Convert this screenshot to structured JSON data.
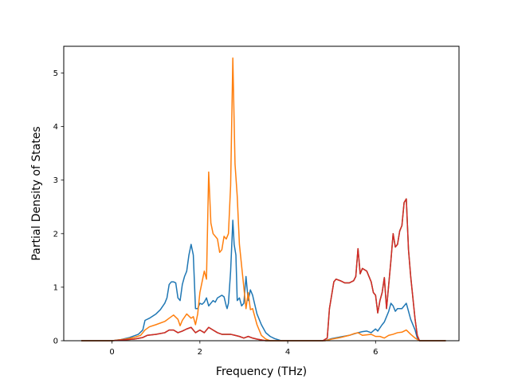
{
  "chart_data": {
    "type": "line",
    "xlabel": "Frequency (THz)",
    "ylabel": "Partial Density of States",
    "xlim": [
      -1.1,
      7.9
    ],
    "ylim": [
      0,
      5.5
    ],
    "xticks": [
      0,
      2,
      4,
      6
    ],
    "yticks": [
      0,
      1,
      2,
      3,
      4,
      5
    ],
    "grid": false,
    "legend": "none",
    "series": [
      {
        "color": "#1f77b4",
        "points": [
          [
            -0.7,
            0
          ],
          [
            0,
            0
          ],
          [
            0.2,
            0.02
          ],
          [
            0.4,
            0.06
          ],
          [
            0.6,
            0.12
          ],
          [
            0.7,
            0.2
          ],
          [
            0.75,
            0.38
          ],
          [
            0.85,
            0.42
          ],
          [
            1.0,
            0.5
          ],
          [
            1.1,
            0.58
          ],
          [
            1.2,
            0.7
          ],
          [
            1.25,
            0.8
          ],
          [
            1.3,
            1.05
          ],
          [
            1.35,
            1.1
          ],
          [
            1.4,
            1.1
          ],
          [
            1.45,
            1.08
          ],
          [
            1.5,
            0.8
          ],
          [
            1.55,
            0.75
          ],
          [
            1.6,
            1.05
          ],
          [
            1.65,
            1.2
          ],
          [
            1.7,
            1.3
          ],
          [
            1.75,
            1.6
          ],
          [
            1.8,
            1.8
          ],
          [
            1.85,
            1.6
          ],
          [
            1.9,
            0.6
          ],
          [
            1.95,
            0.6
          ],
          [
            2.0,
            0.7
          ],
          [
            2.05,
            0.68
          ],
          [
            2.1,
            0.72
          ],
          [
            2.15,
            0.8
          ],
          [
            2.2,
            0.65
          ],
          [
            2.25,
            0.7
          ],
          [
            2.3,
            0.75
          ],
          [
            2.35,
            0.72
          ],
          [
            2.4,
            0.8
          ],
          [
            2.5,
            0.85
          ],
          [
            2.55,
            0.82
          ],
          [
            2.6,
            0.65
          ],
          [
            2.62,
            0.6
          ],
          [
            2.65,
            0.7
          ],
          [
            2.7,
            1.3
          ],
          [
            2.75,
            2.25
          ],
          [
            2.78,
            1.8
          ],
          [
            2.82,
            1.6
          ],
          [
            2.85,
            0.75
          ],
          [
            2.9,
            0.8
          ],
          [
            2.95,
            0.65
          ],
          [
            3.0,
            0.7
          ],
          [
            3.05,
            1.2
          ],
          [
            3.1,
            0.75
          ],
          [
            3.15,
            0.95
          ],
          [
            3.2,
            0.85
          ],
          [
            3.3,
            0.5
          ],
          [
            3.4,
            0.3
          ],
          [
            3.5,
            0.15
          ],
          [
            3.6,
            0.08
          ],
          [
            3.7,
            0.04
          ],
          [
            3.85,
            0
          ],
          [
            4.85,
            0
          ],
          [
            5.0,
            0.04
          ],
          [
            5.2,
            0.07
          ],
          [
            5.4,
            0.1
          ],
          [
            5.6,
            0.15
          ],
          [
            5.7,
            0.17
          ],
          [
            5.8,
            0.18
          ],
          [
            5.9,
            0.15
          ],
          [
            6.0,
            0.22
          ],
          [
            6.05,
            0.18
          ],
          [
            6.15,
            0.3
          ],
          [
            6.2,
            0.35
          ],
          [
            6.25,
            0.45
          ],
          [
            6.3,
            0.55
          ],
          [
            6.35,
            0.7
          ],
          [
            6.4,
            0.65
          ],
          [
            6.45,
            0.55
          ],
          [
            6.5,
            0.6
          ],
          [
            6.6,
            0.6
          ],
          [
            6.7,
            0.7
          ],
          [
            6.75,
            0.55
          ],
          [
            6.8,
            0.4
          ],
          [
            6.9,
            0.2
          ],
          [
            6.95,
            0.05
          ],
          [
            7.0,
            0
          ],
          [
            7.6,
            0
          ]
        ]
      },
      {
        "color": "#ff7f0e",
        "points": [
          [
            -0.7,
            0
          ],
          [
            0,
            0
          ],
          [
            0.3,
            0.03
          ],
          [
            0.5,
            0.06
          ],
          [
            0.65,
            0.1
          ],
          [
            0.75,
            0.2
          ],
          [
            0.85,
            0.26
          ],
          [
            1.0,
            0.3
          ],
          [
            1.2,
            0.36
          ],
          [
            1.3,
            0.42
          ],
          [
            1.4,
            0.48
          ],
          [
            1.5,
            0.4
          ],
          [
            1.55,
            0.28
          ],
          [
            1.6,
            0.38
          ],
          [
            1.7,
            0.5
          ],
          [
            1.8,
            0.42
          ],
          [
            1.85,
            0.45
          ],
          [
            1.9,
            0.3
          ],
          [
            1.95,
            0.5
          ],
          [
            2.0,
            0.9
          ],
          [
            2.1,
            1.3
          ],
          [
            2.15,
            1.15
          ],
          [
            2.2,
            3.15
          ],
          [
            2.25,
            2.2
          ],
          [
            2.3,
            2.0
          ],
          [
            2.4,
            1.9
          ],
          [
            2.45,
            1.65
          ],
          [
            2.5,
            1.7
          ],
          [
            2.55,
            1.95
          ],
          [
            2.6,
            1.9
          ],
          [
            2.65,
            2.0
          ],
          [
            2.7,
            2.9
          ],
          [
            2.75,
            5.28
          ],
          [
            2.8,
            3.3
          ],
          [
            2.85,
            2.7
          ],
          [
            2.9,
            1.8
          ],
          [
            3.0,
            1.0
          ],
          [
            3.05,
            0.6
          ],
          [
            3.1,
            0.9
          ],
          [
            3.15,
            0.58
          ],
          [
            3.2,
            0.6
          ],
          [
            3.3,
            0.3
          ],
          [
            3.4,
            0.1
          ],
          [
            3.5,
            0.03
          ],
          [
            3.6,
            0
          ],
          [
            4.85,
            0
          ],
          [
            5.0,
            0.03
          ],
          [
            5.2,
            0.06
          ],
          [
            5.4,
            0.1
          ],
          [
            5.5,
            0.13
          ],
          [
            5.6,
            0.15
          ],
          [
            5.7,
            0.1
          ],
          [
            5.8,
            0.11
          ],
          [
            5.9,
            0.12
          ],
          [
            6.0,
            0.08
          ],
          [
            6.1,
            0.08
          ],
          [
            6.2,
            0.05
          ],
          [
            6.3,
            0.1
          ],
          [
            6.4,
            0.12
          ],
          [
            6.5,
            0.15
          ],
          [
            6.6,
            0.16
          ],
          [
            6.7,
            0.2
          ],
          [
            6.8,
            0.12
          ],
          [
            6.9,
            0.05
          ],
          [
            7.0,
            0
          ],
          [
            7.6,
            0
          ]
        ]
      },
      {
        "color": "#2ca02c",
        "points": [
          [
            -0.7,
            0
          ],
          [
            0,
            0
          ],
          [
            0.5,
            0.03
          ],
          [
            0.7,
            0.06
          ],
          [
            0.8,
            0.1
          ],
          [
            1.0,
            0.12
          ],
          [
            1.2,
            0.15
          ],
          [
            1.3,
            0.2
          ],
          [
            1.4,
            0.2
          ],
          [
            1.5,
            0.15
          ],
          [
            1.6,
            0.18
          ],
          [
            1.7,
            0.22
          ],
          [
            1.8,
            0.25
          ],
          [
            1.9,
            0.15
          ],
          [
            2.0,
            0.2
          ],
          [
            2.1,
            0.15
          ],
          [
            2.2,
            0.25
          ],
          [
            2.3,
            0.2
          ],
          [
            2.4,
            0.15
          ],
          [
            2.5,
            0.12
          ],
          [
            2.6,
            0.12
          ],
          [
            2.7,
            0.12
          ],
          [
            2.8,
            0.1
          ],
          [
            2.9,
            0.08
          ],
          [
            3.0,
            0.05
          ],
          [
            3.1,
            0.08
          ],
          [
            3.2,
            0.05
          ],
          [
            3.3,
            0.03
          ],
          [
            3.5,
            0
          ],
          [
            4.8,
            0
          ],
          [
            4.9,
            0.05
          ],
          [
            4.95,
            0.6
          ],
          [
            5.0,
            0.85
          ],
          [
            5.05,
            1.1
          ],
          [
            5.1,
            1.15
          ],
          [
            5.2,
            1.12
          ],
          [
            5.3,
            1.08
          ],
          [
            5.4,
            1.08
          ],
          [
            5.5,
            1.12
          ],
          [
            5.55,
            1.2
          ],
          [
            5.6,
            1.72
          ],
          [
            5.65,
            1.25
          ],
          [
            5.7,
            1.35
          ],
          [
            5.8,
            1.3
          ],
          [
            5.9,
            1.1
          ],
          [
            5.95,
            0.9
          ],
          [
            6.0,
            0.85
          ],
          [
            6.05,
            0.52
          ],
          [
            6.1,
            0.75
          ],
          [
            6.15,
            0.9
          ],
          [
            6.2,
            1.18
          ],
          [
            6.25,
            0.6
          ],
          [
            6.3,
            1.05
          ],
          [
            6.35,
            1.5
          ],
          [
            6.4,
            2.0
          ],
          [
            6.45,
            1.75
          ],
          [
            6.5,
            1.8
          ],
          [
            6.55,
            2.05
          ],
          [
            6.6,
            2.15
          ],
          [
            6.65,
            2.58
          ],
          [
            6.7,
            2.65
          ],
          [
            6.75,
            1.7
          ],
          [
            6.8,
            1.2
          ],
          [
            6.9,
            0.4
          ],
          [
            6.95,
            0.1
          ],
          [
            7.0,
            0
          ],
          [
            7.6,
            0
          ]
        ]
      },
      {
        "color": "#d62728",
        "points": [
          [
            -0.7,
            0
          ],
          [
            0,
            0
          ],
          [
            0.5,
            0.03
          ],
          [
            0.7,
            0.06
          ],
          [
            0.8,
            0.1
          ],
          [
            1.0,
            0.12
          ],
          [
            1.2,
            0.15
          ],
          [
            1.3,
            0.2
          ],
          [
            1.4,
            0.2
          ],
          [
            1.5,
            0.15
          ],
          [
            1.6,
            0.18
          ],
          [
            1.7,
            0.22
          ],
          [
            1.8,
            0.25
          ],
          [
            1.9,
            0.15
          ],
          [
            2.0,
            0.2
          ],
          [
            2.1,
            0.15
          ],
          [
            2.2,
            0.25
          ],
          [
            2.3,
            0.2
          ],
          [
            2.4,
            0.15
          ],
          [
            2.5,
            0.12
          ],
          [
            2.6,
            0.12
          ],
          [
            2.7,
            0.12
          ],
          [
            2.8,
            0.1
          ],
          [
            2.9,
            0.08
          ],
          [
            3.0,
            0.05
          ],
          [
            3.1,
            0.08
          ],
          [
            3.2,
            0.05
          ],
          [
            3.3,
            0.03
          ],
          [
            3.5,
            0
          ],
          [
            4.8,
            0
          ],
          [
            4.9,
            0.05
          ],
          [
            4.95,
            0.6
          ],
          [
            5.0,
            0.85
          ],
          [
            5.05,
            1.1
          ],
          [
            5.1,
            1.15
          ],
          [
            5.2,
            1.12
          ],
          [
            5.3,
            1.08
          ],
          [
            5.4,
            1.08
          ],
          [
            5.5,
            1.12
          ],
          [
            5.55,
            1.2
          ],
          [
            5.6,
            1.72
          ],
          [
            5.65,
            1.25
          ],
          [
            5.7,
            1.35
          ],
          [
            5.8,
            1.3
          ],
          [
            5.9,
            1.1
          ],
          [
            5.95,
            0.9
          ],
          [
            6.0,
            0.85
          ],
          [
            6.05,
            0.52
          ],
          [
            6.1,
            0.75
          ],
          [
            6.15,
            0.9
          ],
          [
            6.2,
            1.18
          ],
          [
            6.25,
            0.6
          ],
          [
            6.3,
            1.05
          ],
          [
            6.35,
            1.5
          ],
          [
            6.4,
            2.0
          ],
          [
            6.45,
            1.75
          ],
          [
            6.5,
            1.8
          ],
          [
            6.55,
            2.05
          ],
          [
            6.6,
            2.15
          ],
          [
            6.65,
            2.58
          ],
          [
            6.7,
            2.65
          ],
          [
            6.75,
            1.7
          ],
          [
            6.8,
            1.2
          ],
          [
            6.9,
            0.4
          ],
          [
            6.95,
            0.1
          ],
          [
            7.0,
            0
          ],
          [
            7.6,
            0
          ]
        ]
      }
    ]
  }
}
